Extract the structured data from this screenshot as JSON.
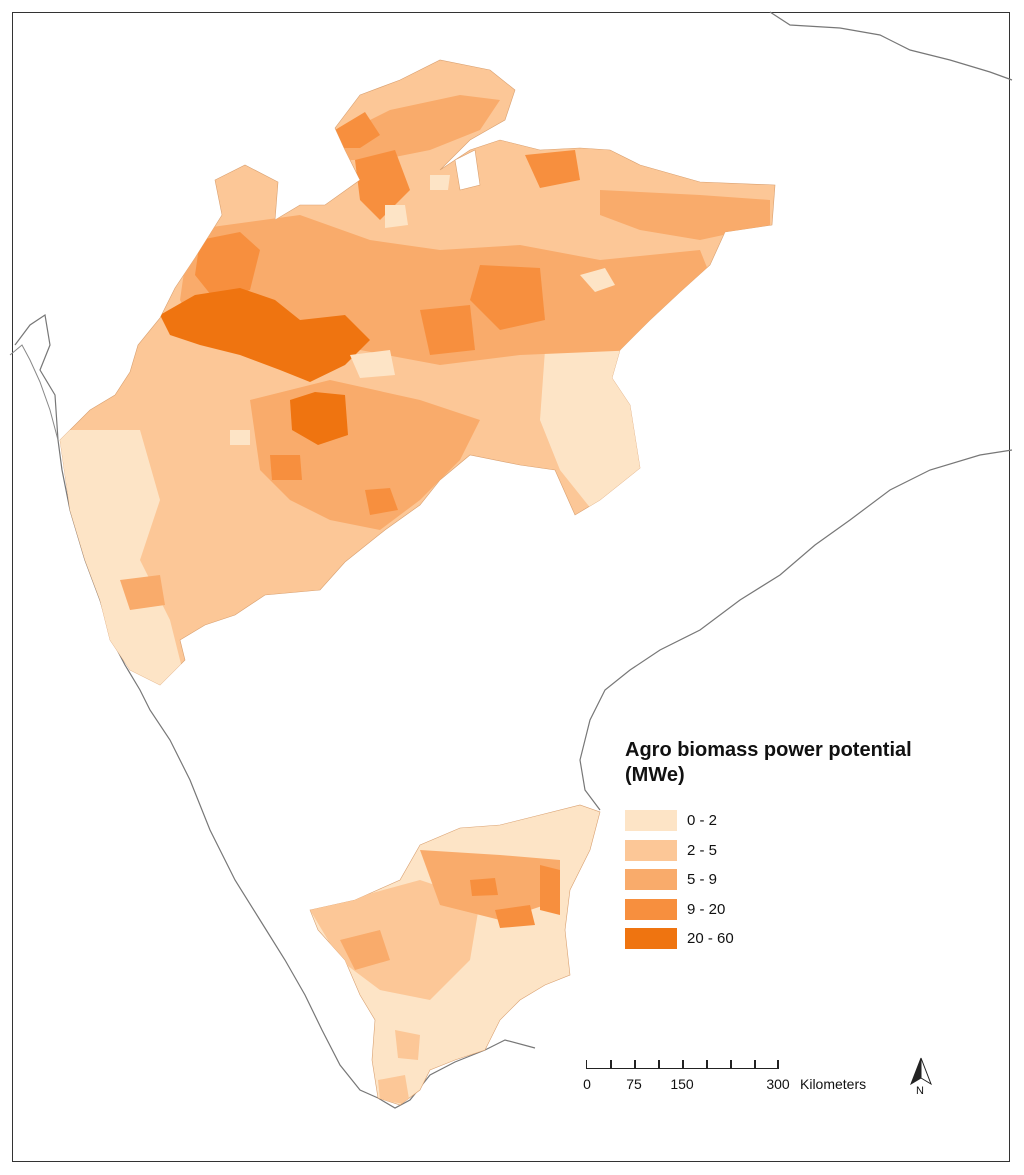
{
  "legend": {
    "title_line1": "Agro biomass power potential",
    "title_line2": "(MWe)",
    "classes": [
      {
        "label": "0 - 2",
        "color": "#fde4c6"
      },
      {
        "label": "2 - 5",
        "color": "#fcc797"
      },
      {
        "label": "5 - 9",
        "color": "#f9ab6b"
      },
      {
        "label": "9 - 20",
        "color": "#f78f3e"
      },
      {
        "label": "20 - 60",
        "color": "#ef7410"
      }
    ]
  },
  "scale_bar": {
    "labels": [
      "0",
      "75",
      "150",
      "300"
    ],
    "unit": "Kilometers"
  },
  "north_arrow": {
    "label": "N"
  }
}
